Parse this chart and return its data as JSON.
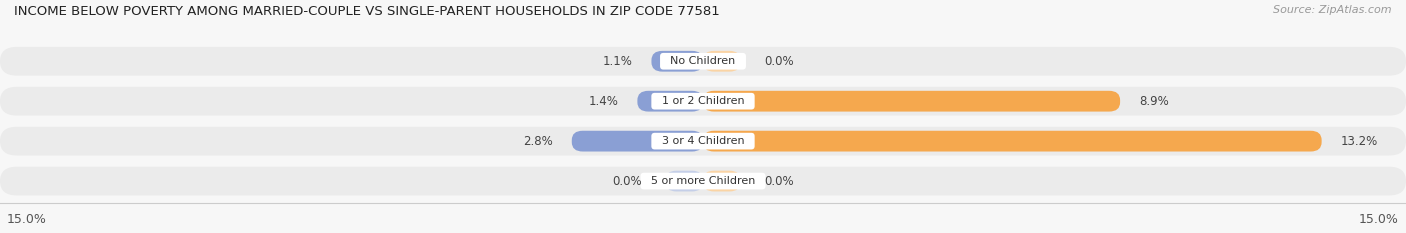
{
  "title": "INCOME BELOW POVERTY AMONG MARRIED-COUPLE VS SINGLE-PARENT HOUSEHOLDS IN ZIP CODE 77581",
  "source": "Source: ZipAtlas.com",
  "categories": [
    "No Children",
    "1 or 2 Children",
    "3 or 4 Children",
    "5 or more Children"
  ],
  "married_values": [
    1.1,
    1.4,
    2.8,
    0.0
  ],
  "single_values": [
    0.0,
    8.9,
    13.2,
    0.0
  ],
  "married_color": "#8a9fd4",
  "single_color": "#f5a84e",
  "married_color_light": "#c5cfe8",
  "single_color_light": "#fad4a5",
  "xlim_abs": 15.0,
  "bar_bg_color": "#ebebeb",
  "background_color": "#f7f7f7",
  "title_fontsize": 9.5,
  "axis_label_fontsize": 9,
  "bar_label_fontsize": 8.5,
  "category_fontsize": 8,
  "legend_fontsize": 9,
  "source_fontsize": 8
}
